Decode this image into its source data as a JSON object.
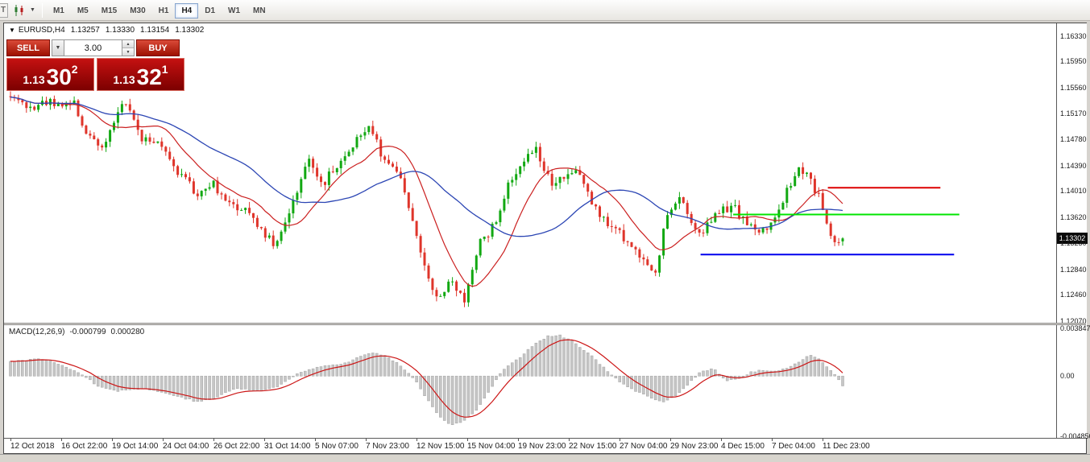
{
  "toolbar": {
    "cropped_icon_label": "T",
    "timeframes": [
      "M1",
      "M5",
      "M15",
      "M30",
      "H1",
      "H4",
      "D1",
      "W1",
      "MN"
    ],
    "selected_timeframe": "H4"
  },
  "icons": {
    "dropdown_caret": "▼",
    "spinner_up": "▲",
    "spinner_down": "▼",
    "symbol_marker": "▼"
  },
  "chart": {
    "symbol_header": "EURUSD,H4",
    "ohlc": {
      "open": "1.13257",
      "high": "1.13330",
      "low": "1.13154",
      "close": "1.13302"
    },
    "current_price": "1.13302",
    "price_axis_labels": [
      "1.16330",
      "1.15950",
      "1.15560",
      "1.15170",
      "1.14780",
      "1.14390",
      "1.14010",
      "1.13620",
      "1.13230",
      "1.12840",
      "1.12460",
      "1.12070"
    ],
    "time_axis_labels": [
      "12 Oct 2018",
      "16 Oct 22:00",
      "19 Oct 14:00",
      "24 Oct 04:00",
      "26 Oct 22:00",
      "31 Oct 14:00",
      "5 Nov 07:00",
      "7 Nov 23:00",
      "12 Nov 15:00",
      "15 Nov 04:00",
      "19 Nov 23:00",
      "22 Nov 15:00",
      "27 Nov 04:00",
      "29 Nov 23:00",
      "4 Dec 15:00",
      "7 Dec 04:00",
      "11 Dec 23:00"
    ],
    "colors": {
      "up": "#12a812",
      "down": "#df352b",
      "ma_fast": "#cb2020",
      "ma_slow": "#2c46b4",
      "level_red": "#dd0000",
      "level_green": "#00e400",
      "level_blue": "#0000ee",
      "hist": "#c6c6c6",
      "hist_stroke": "#a3a3a3",
      "signal": "#cc1616"
    }
  },
  "trade_widget": {
    "sell_label": "SELL",
    "buy_label": "BUY",
    "volume": "3.00",
    "sell_price": {
      "prefix": "1.13",
      "big": "30",
      "sup": "2"
    },
    "buy_price": {
      "prefix": "1.13",
      "big": "32",
      "sup": "1"
    }
  },
  "macd": {
    "label": "MACD(12,26,9)",
    "value_main": "-0.000799",
    "value_signal": "0.000280",
    "axis_labels": [
      "0.003847",
      "0.00",
      "-0.004856"
    ]
  },
  "chart_data": {
    "type": "candlestick",
    "symbol": "EURUSD",
    "timeframe": "H4",
    "title": "EURUSD,H4",
    "y_range": [
      1.1204,
      1.1652
    ],
    "last_candle": {
      "open": 1.13257,
      "high": 1.1333,
      "low": 1.13154,
      "close": 1.13302
    },
    "candles_count": 210,
    "price_path": [
      [
        0,
        1.1546
      ],
      [
        0.021,
        1.1525
      ],
      [
        0.045,
        1.1536
      ],
      [
        0.077,
        1.153
      ],
      [
        0.094,
        1.1482
      ],
      [
        0.113,
        1.1468
      ],
      [
        0.137,
        1.1538
      ],
      [
        0.157,
        1.1482
      ],
      [
        0.181,
        1.147
      ],
      [
        0.2,
        1.1432
      ],
      [
        0.225,
        1.1396
      ],
      [
        0.242,
        1.1416
      ],
      [
        0.258,
        1.1382
      ],
      [
        0.283,
        1.1376
      ],
      [
        0.302,
        1.1342
      ],
      [
        0.319,
        1.1316
      ],
      [
        0.341,
        1.139
      ],
      [
        0.358,
        1.145
      ],
      [
        0.375,
        1.1412
      ],
      [
        0.394,
        1.144
      ],
      [
        0.416,
        1.148
      ],
      [
        0.43,
        1.15
      ],
      [
        0.447,
        1.1452
      ],
      [
        0.464,
        1.143
      ],
      [
        0.481,
        1.1372
      ],
      [
        0.498,
        1.1282
      ],
      [
        0.513,
        1.1242
      ],
      [
        0.529,
        1.1262
      ],
      [
        0.546,
        1.124
      ],
      [
        0.563,
        1.1322
      ],
      [
        0.583,
        1.1352
      ],
      [
        0.6,
        1.142
      ],
      [
        0.62,
        1.1452
      ],
      [
        0.631,
        1.1466
      ],
      [
        0.65,
        1.1412
      ],
      [
        0.67,
        1.142
      ],
      [
        0.684,
        1.143
      ],
      [
        0.704,
        1.1372
      ],
      [
        0.728,
        1.1342
      ],
      [
        0.752,
        1.1312
      ],
      [
        0.774,
        1.127
      ],
      [
        0.788,
        1.136
      ],
      [
        0.805,
        1.139
      ],
      [
        0.827,
        1.1332
      ],
      [
        0.849,
        1.1366
      ],
      [
        0.868,
        1.138
      ],
      [
        0.888,
        1.1346
      ],
      [
        0.907,
        1.1342
      ],
      [
        0.926,
        1.1382
      ],
      [
        0.946,
        1.1432
      ],
      [
        0.96,
        1.142
      ],
      [
        0.975,
        1.1382
      ],
      [
        0.989,
        1.1322
      ],
      [
        1,
        1.13302
      ]
    ],
    "levels": [
      {
        "color": "red",
        "price": 1.1406,
        "x1": 0.783,
        "x2": 0.89
      },
      {
        "color": "green",
        "price": 1.1366,
        "x1": 0.693,
        "x2": 0.908
      },
      {
        "color": "blue",
        "price": 1.1306,
        "x1": 0.662,
        "x2": 0.903
      }
    ],
    "macd": {
      "params": [
        12,
        26,
        9
      ],
      "current_main": -0.000799,
      "current_signal": 0.00028,
      "value_range": [
        -0.004856,
        0.003847
      ],
      "hist_path": [
        [
          0,
          0.0012
        ],
        [
          0.04,
          0.0014
        ],
        [
          0.08,
          0.0004
        ],
        [
          0.105,
          -0.0008
        ],
        [
          0.13,
          -0.0012
        ],
        [
          0.16,
          -0.001
        ],
        [
          0.2,
          -0.0016
        ],
        [
          0.225,
          -0.0021
        ],
        [
          0.245,
          -0.0018
        ],
        [
          0.27,
          -0.001
        ],
        [
          0.3,
          -0.0012
        ],
        [
          0.32,
          -0.0009
        ],
        [
          0.345,
          0.0002
        ],
        [
          0.37,
          0.0008
        ],
        [
          0.4,
          0.001
        ],
        [
          0.425,
          0.0017
        ],
        [
          0.435,
          0.0019
        ],
        [
          0.455,
          0.0015
        ],
        [
          0.47,
          0.0008
        ],
        [
          0.485,
          -0.0002
        ],
        [
          0.5,
          -0.0018
        ],
        [
          0.515,
          -0.0032
        ],
        [
          0.53,
          -0.004
        ],
        [
          0.545,
          -0.0036
        ],
        [
          0.56,
          -0.0028
        ],
        [
          0.575,
          -0.0012
        ],
        [
          0.59,
          0.0004
        ],
        [
          0.61,
          0.0014
        ],
        [
          0.63,
          0.0026
        ],
        [
          0.645,
          0.0032
        ],
        [
          0.66,
          0.0033
        ],
        [
          0.675,
          0.0028
        ],
        [
          0.695,
          0.0018
        ],
        [
          0.715,
          0.0006
        ],
        [
          0.73,
          -0.0004
        ],
        [
          0.75,
          -0.0012
        ],
        [
          0.77,
          -0.0018
        ],
        [
          0.785,
          -0.0021
        ],
        [
          0.8,
          -0.0016
        ],
        [
          0.815,
          -0.0006
        ],
        [
          0.83,
          0.0004
        ],
        [
          0.845,
          0.0006
        ],
        [
          0.86,
          -0.0004
        ],
        [
          0.875,
          -0.0002
        ],
        [
          0.89,
          0.0003
        ],
        [
          0.905,
          0.0005
        ],
        [
          0.92,
          0.0004
        ],
        [
          0.935,
          0.0007
        ],
        [
          0.95,
          0.0012
        ],
        [
          0.96,
          0.0018
        ],
        [
          0.975,
          0.0012
        ],
        [
          0.99,
          0.0002
        ],
        [
          1,
          -0.000799
        ]
      ]
    }
  }
}
